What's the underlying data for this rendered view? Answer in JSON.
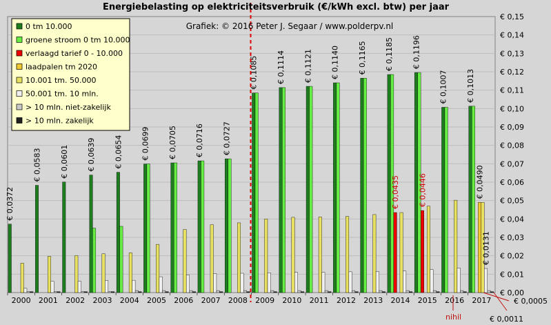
{
  "chart_data": {
    "type": "bar",
    "title": "Energiebelasting  op elektriciteitsverbruik  (€/kWh  excl. btw) per jaar",
    "subtitle": "Grafiek:  © 2016 Peter J. Segaar / www.polderpv.nl",
    "categories": [
      "2000",
      "2001",
      "2002",
      "2003",
      "2004",
      "2005",
      "2006",
      "2007",
      "2008",
      "2009",
      "2010",
      "2011",
      "2012",
      "2013",
      "2014",
      "2015",
      "2016",
      "2017"
    ],
    "ylim": [
      0,
      0.15
    ],
    "yticks": [
      0,
      0.01,
      0.02,
      0.03,
      0.04,
      0.05,
      0.06,
      0.07,
      0.08,
      0.09,
      0.1,
      0.11,
      0.12,
      0.13,
      0.14,
      0.15
    ],
    "ytick_labels": [
      "€ 0,00",
      "€ 0,01",
      "€ 0,02",
      "€ 0,03",
      "€ 0,04",
      "€ 0,05",
      "€ 0,06",
      "€ 0,07",
      "€ 0,08",
      "€ 0,09",
      "€ 0,10",
      "€ 0,11",
      "€ 0,12",
      "€ 0,13",
      "€ 0,14",
      "€ 0,15"
    ],
    "grid": true,
    "legend_position": "top-left",
    "divider_after": "2008",
    "series": [
      {
        "name": "0 tm 10.000",
        "color": "#1e7d1e",
        "values": [
          0.0372,
          0.0583,
          0.0601,
          0.0639,
          0.0654,
          0.0699,
          0.0705,
          0.0716,
          0.0727,
          0.1085,
          0.1114,
          0.1121,
          0.114,
          0.1165,
          0.1185,
          0.1196,
          0.1007,
          0.1013
        ],
        "labels": [
          "€ 0,0372",
          "€ 0,0583",
          "€ 0,0601",
          "€ 0,0639",
          "€ 0,0654",
          "€ 0,0699",
          "€ 0,0705",
          "€ 0,0716",
          "€ 0,0727",
          "€ 0,1085",
          "€ 0,1114",
          "€ 0,1121",
          "€ 0,1140",
          "€ 0,1165",
          "€ 0,1185",
          "€ 0,1196",
          "€ 0,1007",
          "€ 0,1013"
        ]
      },
      {
        "name": "groene stroom 0 tm 10.000",
        "color": "#66ee44",
        "values": [
          null,
          null,
          null,
          0.035,
          0.036,
          0.0699,
          0.0705,
          0.0716,
          0.0727,
          0.1085,
          0.1114,
          0.1121,
          0.114,
          0.1165,
          0.1185,
          0.1196,
          0.1007,
          0.1013
        ],
        "labels": []
      },
      {
        "name": "verlaagd tarief 0 - 10.000",
        "color": "#ee0000",
        "values": [
          null,
          null,
          null,
          null,
          null,
          null,
          null,
          null,
          null,
          null,
          null,
          null,
          null,
          null,
          0.0435,
          0.0446,
          null,
          null
        ],
        "labels": [
          null,
          null,
          null,
          null,
          null,
          null,
          null,
          null,
          null,
          null,
          null,
          null,
          null,
          null,
          "€ 0,0435",
          "€ 0,0446",
          null,
          null
        ]
      },
      {
        "name": "laadpalen tm 2020",
        "color": "#f0c830",
        "values": [
          null,
          null,
          null,
          null,
          null,
          null,
          null,
          null,
          null,
          null,
          null,
          null,
          null,
          null,
          null,
          null,
          null,
          0.049
        ],
        "labels": [
          null,
          null,
          null,
          null,
          null,
          null,
          null,
          null,
          null,
          null,
          null,
          null,
          null,
          null,
          null,
          null,
          null,
          "€ 0,0490"
        ]
      },
      {
        "name": "10.001 tm. 50.000",
        "color": "#e8e060",
        "values": [
          0.016,
          0.0197,
          0.0201,
          0.0211,
          0.0216,
          0.0262,
          0.0343,
          0.0369,
          0.0379,
          0.04,
          0.0409,
          0.0411,
          0.0414,
          0.0424,
          0.0435,
          0.047,
          0.0502,
          0.049
        ],
        "labels": []
      },
      {
        "name": "50.001 tm. 10 mln.",
        "color": "#f0f0f0",
        "values": [
          0.0023,
          0.0061,
          0.0062,
          0.0066,
          0.0067,
          0.0086,
          0.0096,
          0.0103,
          0.0105,
          0.0108,
          0.011,
          0.011,
          0.0113,
          0.0115,
          0.0117,
          0.0125,
          0.0134,
          0.0131
        ],
        "labels": [
          null,
          null,
          null,
          null,
          null,
          null,
          null,
          null,
          null,
          null,
          null,
          null,
          null,
          null,
          null,
          null,
          null,
          "€ 0,0131"
        ]
      },
      {
        "name": "> 10 mln. niet-zakelijk",
        "color": "#c8c8c8",
        "values": [
          0.0005,
          0.0005,
          0.0005,
          0.0005,
          0.0011,
          0.0011,
          0.0011,
          0.0011,
          0.0011,
          0.0011,
          0.0011,
          0.0011,
          0.0011,
          0.0011,
          0.0011,
          0.0011,
          0.0011,
          0.0011
        ],
        "labels": []
      },
      {
        "name": "> 10 mln. zakelijk",
        "color": "#202020",
        "values": [
          0.0005,
          0.0005,
          0.0005,
          0.0005,
          0.0005,
          0.0005,
          0.0005,
          0.0005,
          0.0005,
          0.0005,
          0.0005,
          0.0005,
          0.0005,
          0.0005,
          0.0005,
          0.0005,
          0.0005,
          0.0005
        ],
        "labels": []
      }
    ],
    "annotations": [
      {
        "text": "nihil",
        "color": "#c01010"
      },
      {
        "text": "€ 0,0005",
        "color": "#000000"
      },
      {
        "text": "€ 0,0011",
        "color": "#000000"
      }
    ]
  }
}
